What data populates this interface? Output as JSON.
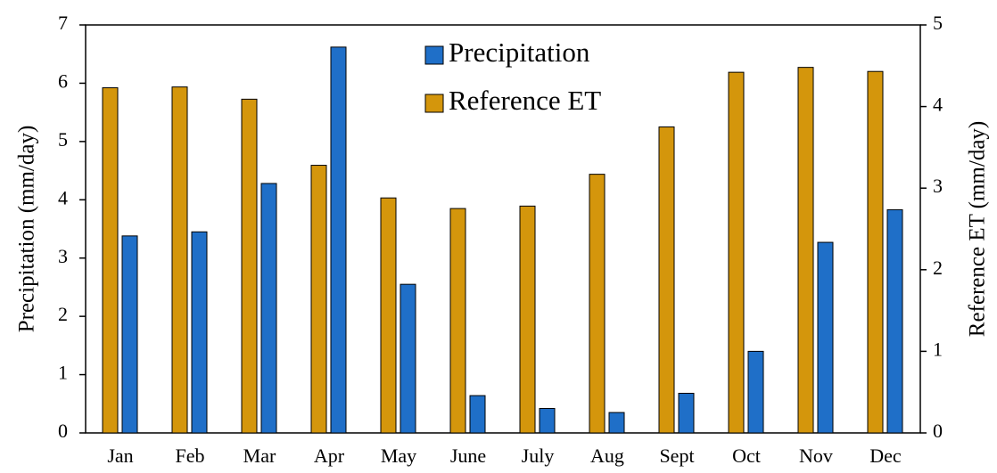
{
  "chart_data": {
    "type": "bar",
    "categories": [
      "Jan",
      "Feb",
      "Mar",
      "Apr",
      "May",
      "June",
      "July",
      "Aug",
      "Sept",
      "Oct",
      "Nov",
      "Dec"
    ],
    "series": [
      {
        "name": "Reference ET",
        "color": "#d4960c",
        "axis": "y2",
        "values": [
          4.23,
          4.24,
          4.09,
          3.28,
          2.88,
          2.75,
          2.78,
          3.17,
          3.75,
          4.42,
          4.48,
          4.43
        ]
      },
      {
        "name": "Precipitation",
        "color": "#1f6fc8",
        "values": [
          3.38,
          3.45,
          4.28,
          6.62,
          2.55,
          0.64,
          0.42,
          0.35,
          0.68,
          1.4,
          3.27,
          3.83
        ]
      }
    ],
    "ylabel": "Precipitation  (mm/day)",
    "y2label": "Reference  ET (mm/day)",
    "ylim": [
      0,
      7
    ],
    "yticks": [
      0,
      1,
      2,
      3,
      4,
      5,
      6,
      7
    ],
    "y2lim": [
      0,
      5
    ],
    "y2ticks": [
      0,
      1,
      2,
      3,
      4,
      5
    ]
  }
}
